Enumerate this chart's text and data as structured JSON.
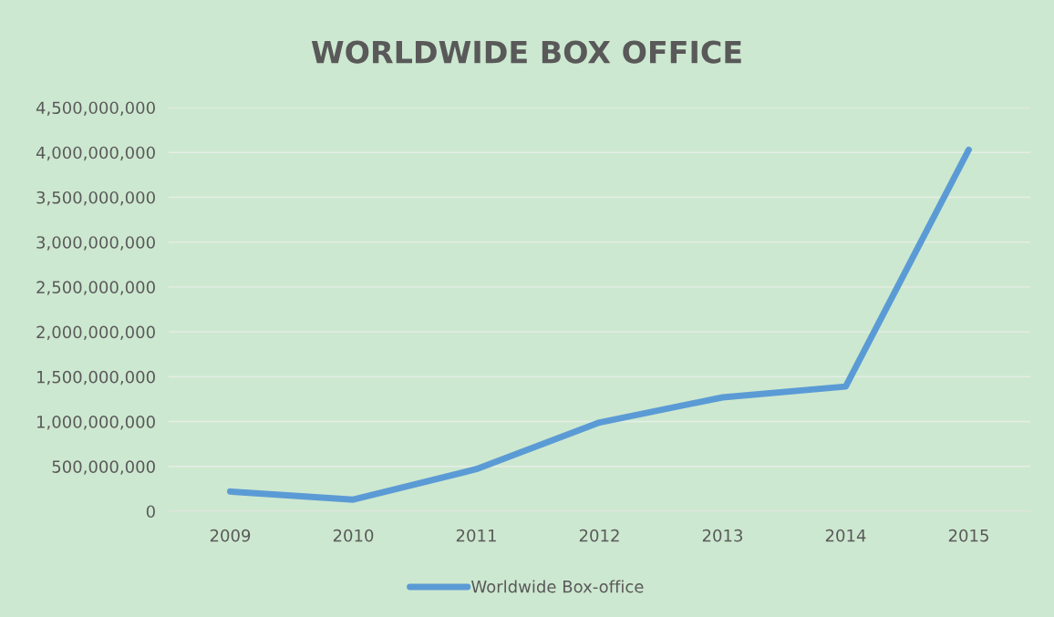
{
  "chart_data": {
    "type": "line",
    "title": "WORLDWIDE BOX OFFICE",
    "categories": [
      "2009",
      "2010",
      "2011",
      "2012",
      "2013",
      "2014",
      "2015"
    ],
    "series": [
      {
        "name": "Worldwide Box-office",
        "color": "#5b9bd5",
        "values": [
          220000000,
          130000000,
          470000000,
          990000000,
          1270000000,
          1390000000,
          4030000000
        ]
      }
    ],
    "ylim": [
      0,
      4500000000
    ],
    "yticks": [
      {
        "value": 0,
        "label": "0"
      },
      {
        "value": 500000000,
        "label": "500,000,000"
      },
      {
        "value": 1000000000,
        "label": "1,000,000,000"
      },
      {
        "value": 1500000000,
        "label": "1,500,000,000"
      },
      {
        "value": 2000000000,
        "label": "2,000,000,000"
      },
      {
        "value": 2500000000,
        "label": "2,500,000,000"
      },
      {
        "value": 3000000000,
        "label": "3,000,000,000"
      },
      {
        "value": 3500000000,
        "label": "3,500,000,000"
      },
      {
        "value": 4000000000,
        "label": "4,000,000,000"
      },
      {
        "value": 4500000000,
        "label": "4,500,000,000"
      }
    ],
    "grid": "y",
    "legend": "bottom",
    "marker": "none",
    "line_style": "solid"
  }
}
